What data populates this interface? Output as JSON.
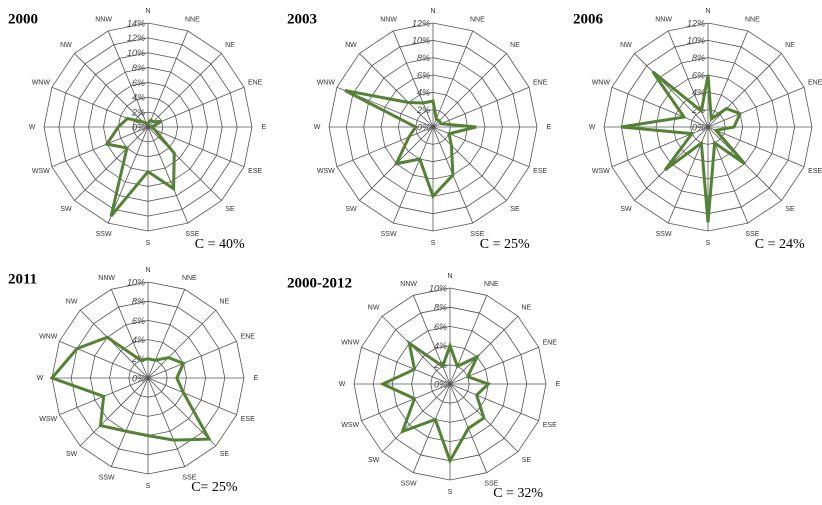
{
  "chart_data": [
    {
      "type": "radar",
      "title": "2000",
      "annotation": "C = 40%",
      "color": "#548235",
      "categories": [
        "N",
        "NNE",
        "NE",
        "ENE",
        "E",
        "ESE",
        "SE",
        "SSE",
        "S",
        "SSW",
        "SW",
        "WSW",
        "W",
        "WNW",
        "NW",
        "NNW"
      ],
      "values": [
        0.5,
        1,
        1,
        2,
        0.5,
        1,
        5,
        9,
        6,
        13,
        4,
        6,
        4,
        3,
        1,
        0.5
      ],
      "rlim": [
        0,
        14
      ],
      "rticks": [
        {
          "value": 0,
          "label": "0%"
        },
        {
          "value": 2,
          "label": "2%"
        },
        {
          "value": 4,
          "label": "4%"
        },
        {
          "value": 6,
          "label": "6%"
        },
        {
          "value": 8,
          "label": "8%"
        },
        {
          "value": 10,
          "label": "10%"
        },
        {
          "value": 12,
          "label": "12%"
        },
        {
          "value": 14,
          "label": "14%"
        }
      ]
    },
    {
      "type": "radar",
      "title": "2003",
      "annotation": "C = 25%",
      "color": "#548235",
      "categories": [
        "N",
        "NNE",
        "NE",
        "ENE",
        "E",
        "ESE",
        "SE",
        "SSE",
        "S",
        "SSW",
        "SW",
        "WSW",
        "W",
        "WNW",
        "NW",
        "NNW"
      ],
      "values": [
        3,
        1,
        1,
        1,
        5,
        2,
        3,
        6,
        8,
        4,
        6,
        3,
        2,
        11,
        4,
        3
      ],
      "rlim": [
        0,
        12
      ],
      "rticks": [
        {
          "value": 0,
          "label": "0%"
        },
        {
          "value": 2,
          "label": "2%"
        },
        {
          "value": 4,
          "label": "4%"
        },
        {
          "value": 6,
          "label": "6%"
        },
        {
          "value": 8,
          "label": "8%"
        },
        {
          "value": 10,
          "label": "10%"
        },
        {
          "value": 12,
          "label": "12%"
        }
      ]
    },
    {
      "type": "radar",
      "title": "2006",
      "annotation": "C = 24%",
      "color": "#548235",
      "categories": [
        "N",
        "NNE",
        "NE",
        "ENE",
        "E",
        "ESE",
        "SE",
        "SSE",
        "S",
        "SSW",
        "SW",
        "WSW",
        "W",
        "WNW",
        "NW",
        "NNW"
      ],
      "values": [
        6,
        1,
        3,
        4,
        3,
        1,
        6,
        2,
        11,
        2,
        7,
        2,
        10,
        3,
        9,
        2
      ],
      "rlim": [
        0,
        12
      ],
      "rticks": [
        {
          "value": 0,
          "label": "0%"
        },
        {
          "value": 2,
          "label": "2%"
        },
        {
          "value": 4,
          "label": "4%"
        },
        {
          "value": 6,
          "label": "6%"
        },
        {
          "value": 8,
          "label": "8%"
        },
        {
          "value": 10,
          "label": "10%"
        },
        {
          "value": 12,
          "label": "12%"
        }
      ]
    },
    {
      "type": "radar",
      "title": "2011",
      "annotation": "C= 25%",
      "color": "#548235",
      "categories": [
        "N",
        "NNE",
        "NE",
        "ENE",
        "E",
        "ESE",
        "SE",
        "SSE",
        "S",
        "SSW",
        "SW",
        "WSW",
        "W",
        "WNW",
        "NW",
        "NNW"
      ],
      "values": [
        2,
        2,
        3,
        4,
        3,
        4,
        9,
        7,
        6,
        6,
        7,
        5,
        10,
        8,
        6,
        2
      ],
      "rlim": [
        0,
        10
      ],
      "rticks": [
        {
          "value": 0,
          "label": "0%"
        },
        {
          "value": 2,
          "label": "2%"
        },
        {
          "value": 4,
          "label": "4%"
        },
        {
          "value": 6,
          "label": "6%"
        },
        {
          "value": 8,
          "label": "8%"
        },
        {
          "value": 10,
          "label": "10%"
        }
      ]
    },
    {
      "type": "radar",
      "title": "2000-2012",
      "annotation": "C = 32%",
      "color": "#548235",
      "categories": [
        "N",
        "NNE",
        "NE",
        "ENE",
        "E",
        "ESE",
        "SE",
        "SSE",
        "S",
        "SSW",
        "SW",
        "WSW",
        "W",
        "WNW",
        "NW",
        "NNW"
      ],
      "values": [
        4,
        2,
        4,
        2,
        4,
        3,
        5,
        5,
        8,
        4,
        7,
        4,
        7,
        4,
        6,
        2
      ],
      "rlim": [
        0,
        10
      ],
      "rticks": [
        {
          "value": 0,
          "label": "0%"
        },
        {
          "value": 2,
          "label": "2%"
        },
        {
          "value": 4,
          "label": "4%"
        },
        {
          "value": 6,
          "label": "6%"
        },
        {
          "value": 8,
          "label": "8%"
        },
        {
          "value": 10,
          "label": "10%"
        }
      ]
    }
  ]
}
